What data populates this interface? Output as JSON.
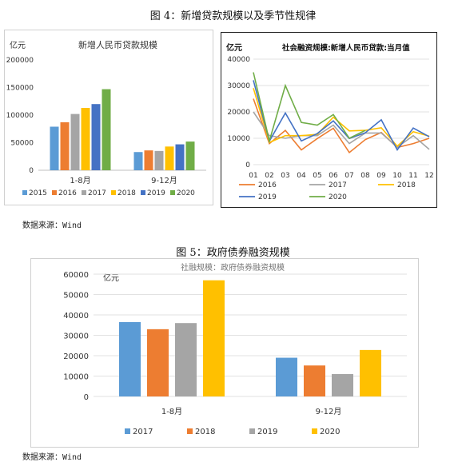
{
  "figure4": {
    "title": "图 4：新增贷款规模以及季节性规律",
    "source": "数据来源：Wind"
  },
  "figure5": {
    "title": "图 5：政府债券融资规模",
    "source": "数据来源：Wind"
  },
  "chart_data": [
    {
      "type": "bar",
      "title": "新增人民币贷款规模",
      "unit": "亿元",
      "categories": [
        "1-8月",
        "9-12月"
      ],
      "ylim": [
        0,
        200000
      ],
      "yticks": [
        0,
        50000,
        100000,
        150000,
        200000
      ],
      "grid": false,
      "legend": "bottom",
      "colors": [
        "#5B9BD5",
        "#ED7D31",
        "#A5A5A5",
        "#FFC000",
        "#4472C4",
        "#70AD47"
      ],
      "series": [
        {
          "name": "2015",
          "values": [
            79000,
            33000
          ]
        },
        {
          "name": "2016",
          "values": [
            87000,
            36000
          ]
        },
        {
          "name": "2017",
          "values": [
            102000,
            35000
          ]
        },
        {
          "name": "2018",
          "values": [
            113000,
            43000
          ]
        },
        {
          "name": "2019",
          "values": [
            120000,
            47000
          ]
        },
        {
          "name": "2020",
          "values": [
            147000,
            52000
          ]
        }
      ]
    },
    {
      "type": "line",
      "title": "社会融资规模:新增人民币贷款:当月值",
      "unit": "亿元",
      "x": [
        "01",
        "02",
        "03",
        "04",
        "05",
        "06",
        "07",
        "08",
        "09",
        "10",
        "11",
        "12"
      ],
      "ylim": [
        0,
        40000
      ],
      "yticks": [
        0,
        10000,
        20000,
        30000,
        40000
      ],
      "grid": true,
      "legend": "bottom",
      "colors": [
        "#ED7D31",
        "#A5A5A5",
        "#FFC000",
        "#4472C4",
        "#70AD47"
      ],
      "series": [
        {
          "name": "2016",
          "values": [
            25000,
            8000,
            13000,
            5600,
            9900,
            13800,
            4600,
            9500,
            12200,
            6500,
            8000,
            10000
          ]
        },
        {
          "name": "2017",
          "values": [
            20000,
            11000,
            10000,
            11000,
            11000,
            15000,
            8000,
            12000,
            12000,
            6600,
            11000,
            5800
          ]
        },
        {
          "name": "2018",
          "values": [
            29000,
            8400,
            11000,
            11000,
            11500,
            18000,
            12800,
            13000,
            14000,
            7000,
            12500,
            10800
          ]
        },
        {
          "name": "2019",
          "values": [
            32000,
            8900,
            19600,
            9000,
            11800,
            16600,
            9900,
            12100,
            17000,
            5600,
            13900,
            10600
          ]
        },
        {
          "name": "2020",
          "values": [
            35000,
            9000,
            30000,
            16000,
            15000,
            19000,
            10000,
            13000,
            null,
            null,
            null,
            null
          ]
        }
      ]
    },
    {
      "type": "bar",
      "title": "社融规模：政府债券融资规模",
      "unit": "亿元",
      "categories": [
        "1-8月",
        "9-12月"
      ],
      "ylim": [
        0,
        60000
      ],
      "yticks": [
        0,
        10000,
        20000,
        30000,
        40000,
        50000,
        60000
      ],
      "grid": true,
      "legend": "bottom",
      "colors": [
        "#5B9BD5",
        "#ED7D31",
        "#A5A5A5",
        "#FFC000"
      ],
      "series": [
        {
          "name": "2017",
          "values": [
            36500,
            19000
          ]
        },
        {
          "name": "2018",
          "values": [
            33000,
            15200
          ]
        },
        {
          "name": "2019",
          "values": [
            36000,
            11000
          ]
        },
        {
          "name": "2020",
          "values": [
            57000,
            22800
          ]
        }
      ]
    }
  ]
}
